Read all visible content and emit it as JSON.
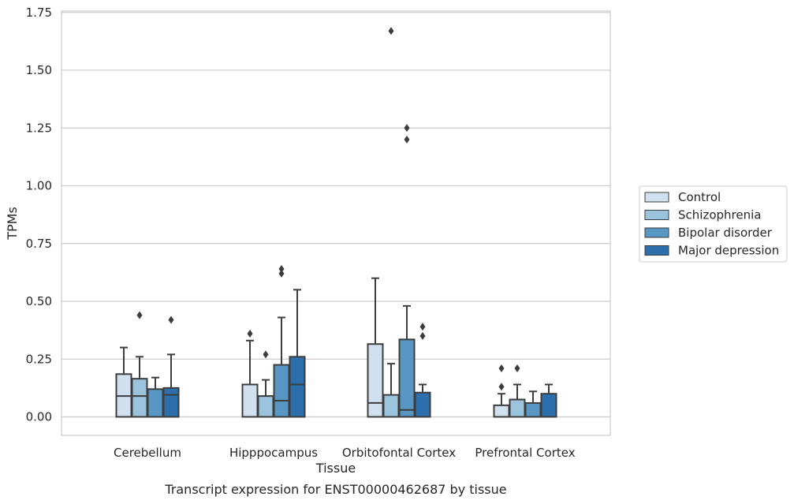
{
  "chart_data": {
    "type": "box",
    "title": "",
    "xlabel": "Tissue",
    "ylabel": "TPMs",
    "caption": "Transcript expression for ENST00000462687 by tissue",
    "ylim": [
      -0.08,
      1.76
    ],
    "yticks": [
      "0.00",
      "0.25",
      "0.50",
      "0.75",
      "1.00",
      "1.25",
      "1.50",
      "1.75"
    ],
    "grid": true,
    "legend_position": "right",
    "categories": [
      "Cerebellum",
      "Hipppocampus",
      "Orbitofontal Cortex",
      "Prefrontal Cortex"
    ],
    "series": [
      {
        "name": "Control",
        "color": "#d0e0ef",
        "boxes": [
          {
            "whislo": 0,
            "q1": 0,
            "med": 0.09,
            "q3": 0.185,
            "whishi": 0.3,
            "fliers": []
          },
          {
            "whislo": 0,
            "q1": 0,
            "med": 0,
            "q3": 0.14,
            "whishi": 0.33,
            "fliers": [
              0.36
            ]
          },
          {
            "whislo": 0,
            "q1": 0,
            "med": 0.06,
            "q3": 0.315,
            "whishi": 0.6,
            "fliers": []
          },
          {
            "whislo": 0,
            "q1": 0,
            "med": 0,
            "q3": 0.05,
            "whishi": 0.1,
            "fliers": [
              0.13,
              0.21
            ]
          }
        ]
      },
      {
        "name": "Schizophrenia",
        "color": "#9cc3dc",
        "boxes": [
          {
            "whislo": 0,
            "q1": 0,
            "med": 0.09,
            "q3": 0.165,
            "whishi": 0.26,
            "fliers": [
              0.44
            ]
          },
          {
            "whislo": 0,
            "q1": 0,
            "med": 0,
            "q3": 0.09,
            "whishi": 0.16,
            "fliers": [
              0.27
            ]
          },
          {
            "whislo": 0,
            "q1": 0,
            "med": 0,
            "q3": 0.095,
            "whishi": 0.23,
            "fliers": [
              1.67
            ]
          },
          {
            "whislo": 0,
            "q1": 0,
            "med": 0,
            "q3": 0.075,
            "whishi": 0.14,
            "fliers": [
              0.21
            ]
          }
        ]
      },
      {
        "name": "Bipolar disorder",
        "color": "#5896c3",
        "boxes": [
          {
            "whislo": 0,
            "q1": 0,
            "med": 0,
            "q3": 0.12,
            "whishi": 0.17,
            "fliers": []
          },
          {
            "whislo": 0,
            "q1": 0,
            "med": 0.07,
            "q3": 0.225,
            "whishi": 0.43,
            "fliers": [
              0.62,
              0.64
            ]
          },
          {
            "whislo": 0,
            "q1": 0,
            "med": 0.03,
            "q3": 0.335,
            "whishi": 0.48,
            "fliers": [
              1.2,
              1.25
            ]
          },
          {
            "whislo": 0,
            "q1": 0,
            "med": 0,
            "q3": 0.06,
            "whishi": 0.11,
            "fliers": []
          }
        ]
      },
      {
        "name": "Major depression",
        "color": "#2c6fac",
        "boxes": [
          {
            "whislo": 0,
            "q1": 0,
            "med": 0.095,
            "q3": 0.125,
            "whishi": 0.27,
            "fliers": [
              0.42
            ]
          },
          {
            "whislo": 0,
            "q1": 0,
            "med": 0.14,
            "q3": 0.26,
            "whishi": 0.55,
            "fliers": []
          },
          {
            "whislo": 0,
            "q1": 0,
            "med": 0,
            "q3": 0.105,
            "whishi": 0.14,
            "fliers": [
              0.35,
              0.39
            ]
          },
          {
            "whislo": 0,
            "q1": 0,
            "med": 0,
            "q3": 0.1,
            "whishi": 0.14,
            "fliers": []
          }
        ]
      }
    ]
  }
}
